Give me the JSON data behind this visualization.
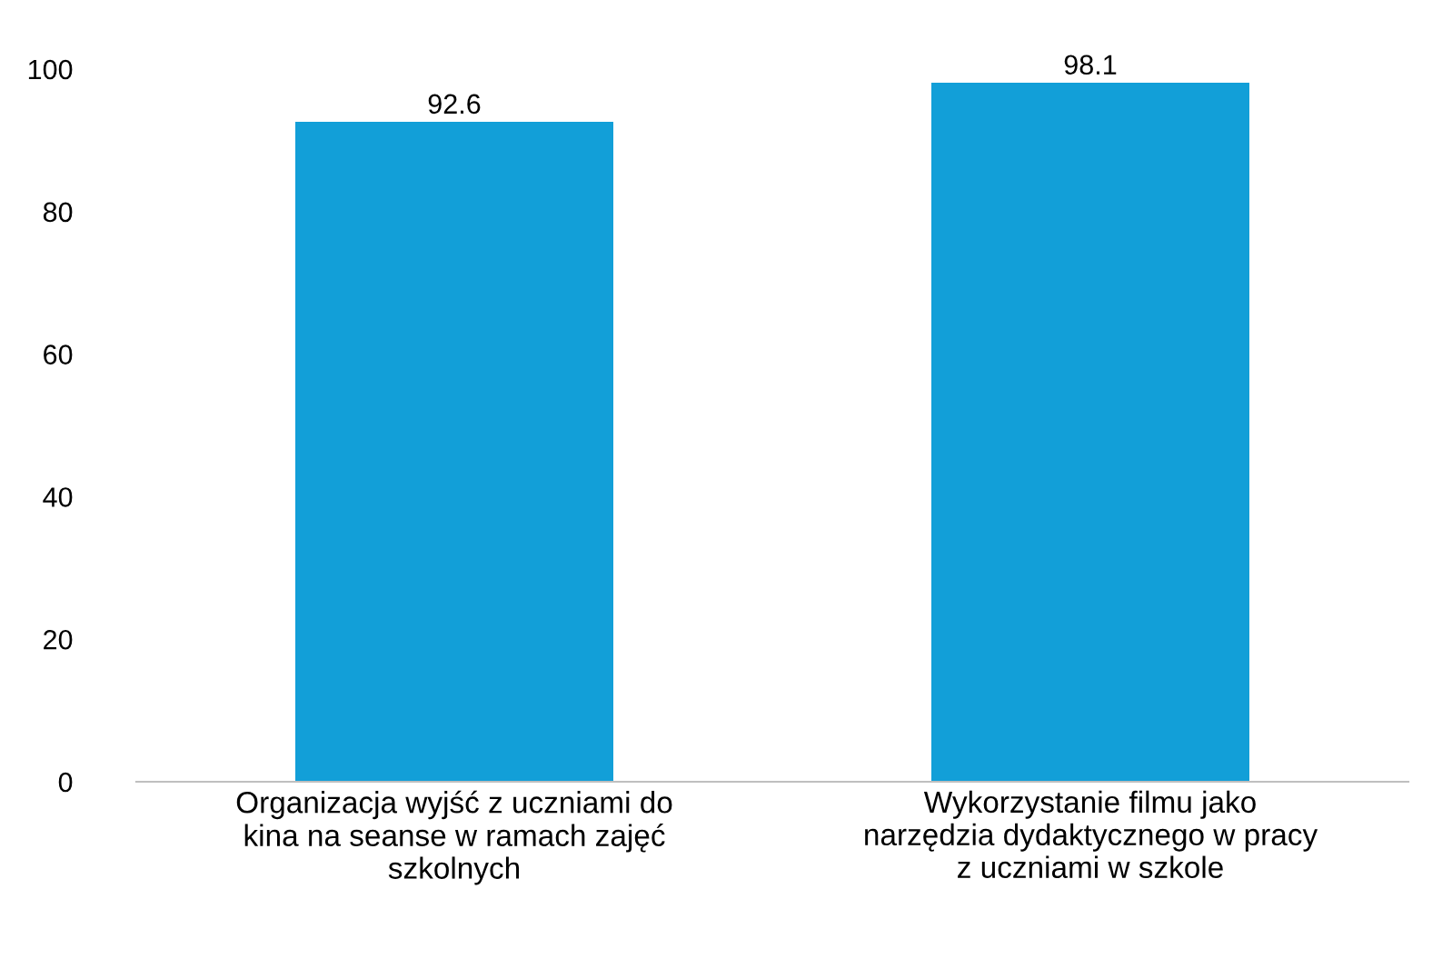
{
  "chart_data": {
    "type": "bar",
    "categories": [
      "Organizacja wyjść z uczniami do\nkina na seanse w ramach zajęć\nszkolnych",
      "Wykorzystanie filmu jako\nnarzędzia dydaktycznego w pracy\nz uczniami w szkole"
    ],
    "values": [
      92.6,
      98.1
    ],
    "color": "#129fd8",
    "ylim": [
      0,
      100
    ],
    "yticks": [
      0,
      20,
      40,
      60,
      80,
      100
    ],
    "grid": false,
    "data_labels": true
  }
}
